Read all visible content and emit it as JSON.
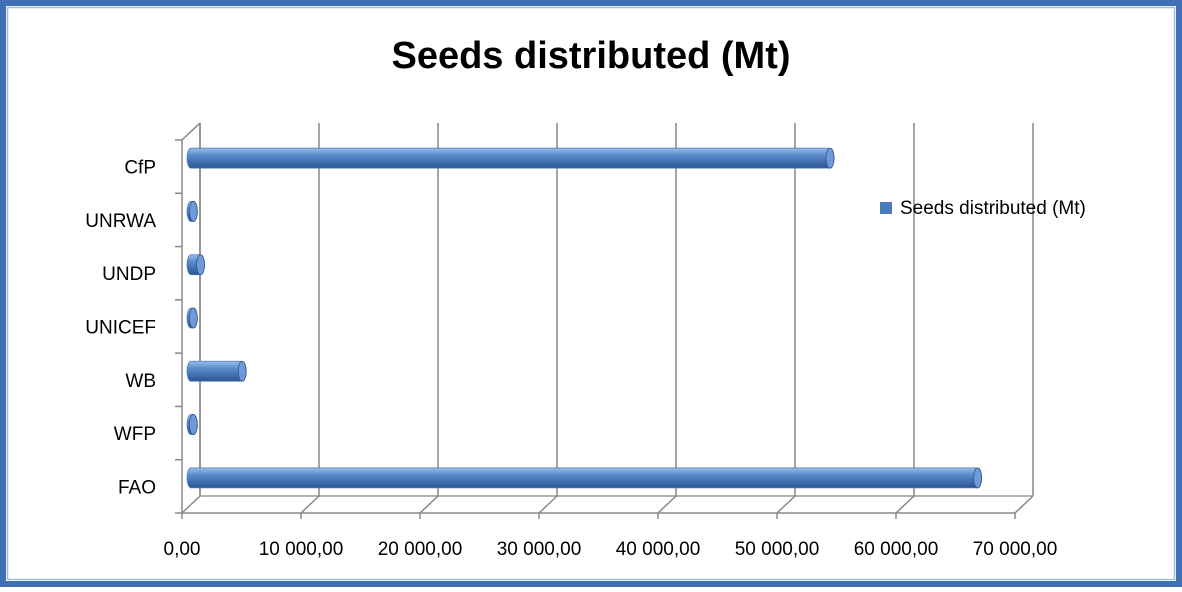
{
  "chart_data": {
    "type": "bar",
    "orientation": "horizontal",
    "title": "Seeds distributed (Mt)",
    "categories": [
      "FAO",
      "WFP",
      "WB",
      "UNICEF",
      "UNDP",
      "UNRWA",
      "CfP"
    ],
    "series": [
      {
        "name": "Seeds distributed (Mt)",
        "color": "#4a7bbd",
        "values": [
          66100,
          200,
          4300,
          200,
          800,
          200,
          53700
        ]
      }
    ],
    "xlim": [
      0,
      70000
    ],
    "xticks": [
      {
        "value": 0,
        "label": "0,00"
      },
      {
        "value": 10000,
        "label": "10 000,00"
      },
      {
        "value": 20000,
        "label": "20 000,00"
      },
      {
        "value": 30000,
        "label": "30 000,00"
      },
      {
        "value": 40000,
        "label": "40 000,00"
      },
      {
        "value": 50000,
        "label": "50 000,00"
      },
      {
        "value": 60000,
        "label": "60 000,00"
      },
      {
        "value": 70000,
        "label": "70 000,00"
      }
    ],
    "grid": true,
    "legend": "right"
  }
}
